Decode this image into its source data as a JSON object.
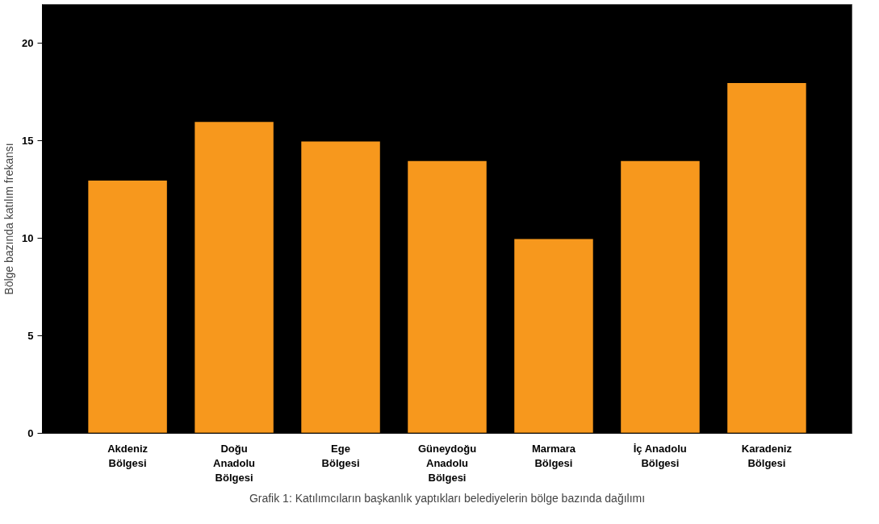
{
  "chart_data": {
    "type": "bar",
    "ylabel": "Bölge bazında katılım frekansı",
    "categories": [
      "Akdeniz\nBölgesi",
      "Doğu\nAnadolu\nBölgesi",
      "Ege\nBölgesi",
      "Güneydoğu\nAnadolu\nBölgesi",
      "Marmara\nBölgesi",
      "İç Anadolu\nBölgesi",
      "Karadeniz\nBölgesi"
    ],
    "values": [
      13,
      16,
      15,
      14,
      10,
      14,
      18
    ],
    "color": "#f7981d",
    "ylim": [
      0,
      22
    ],
    "yticks": [
      0,
      5,
      10,
      15,
      20
    ],
    "grid": false,
    "annotations": [
      "Grafik 1: Katılımcıların başkanlık yaptıkları belediyelerin bölge bazında dağılımı"
    ]
  }
}
